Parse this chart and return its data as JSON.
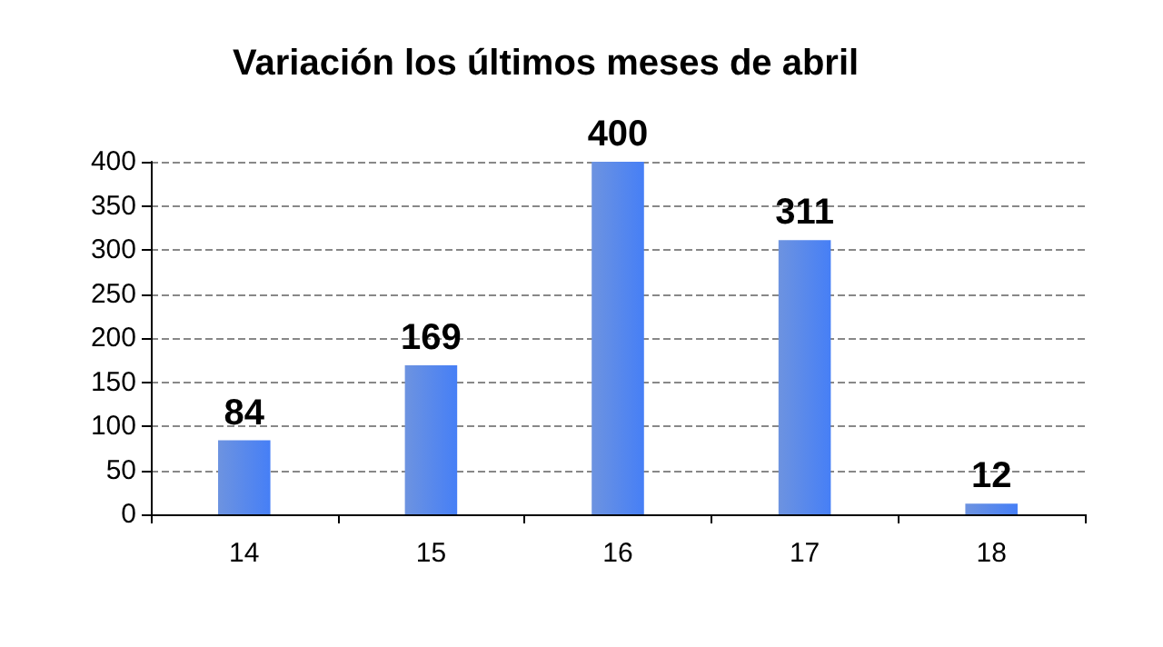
{
  "chart_data": {
    "type": "bar",
    "title": "Variación los últimos meses de abril",
    "categories": [
      "14",
      "15",
      "16",
      "17",
      "18"
    ],
    "values": [
      84,
      169,
      400,
      311,
      12
    ],
    "color": "#3d6fd6",
    "ylim": [
      0,
      400
    ],
    "yticks": [
      0,
      50,
      100,
      150,
      200,
      250,
      300,
      350,
      400
    ],
    "grid": "y",
    "data_labels": true
  }
}
